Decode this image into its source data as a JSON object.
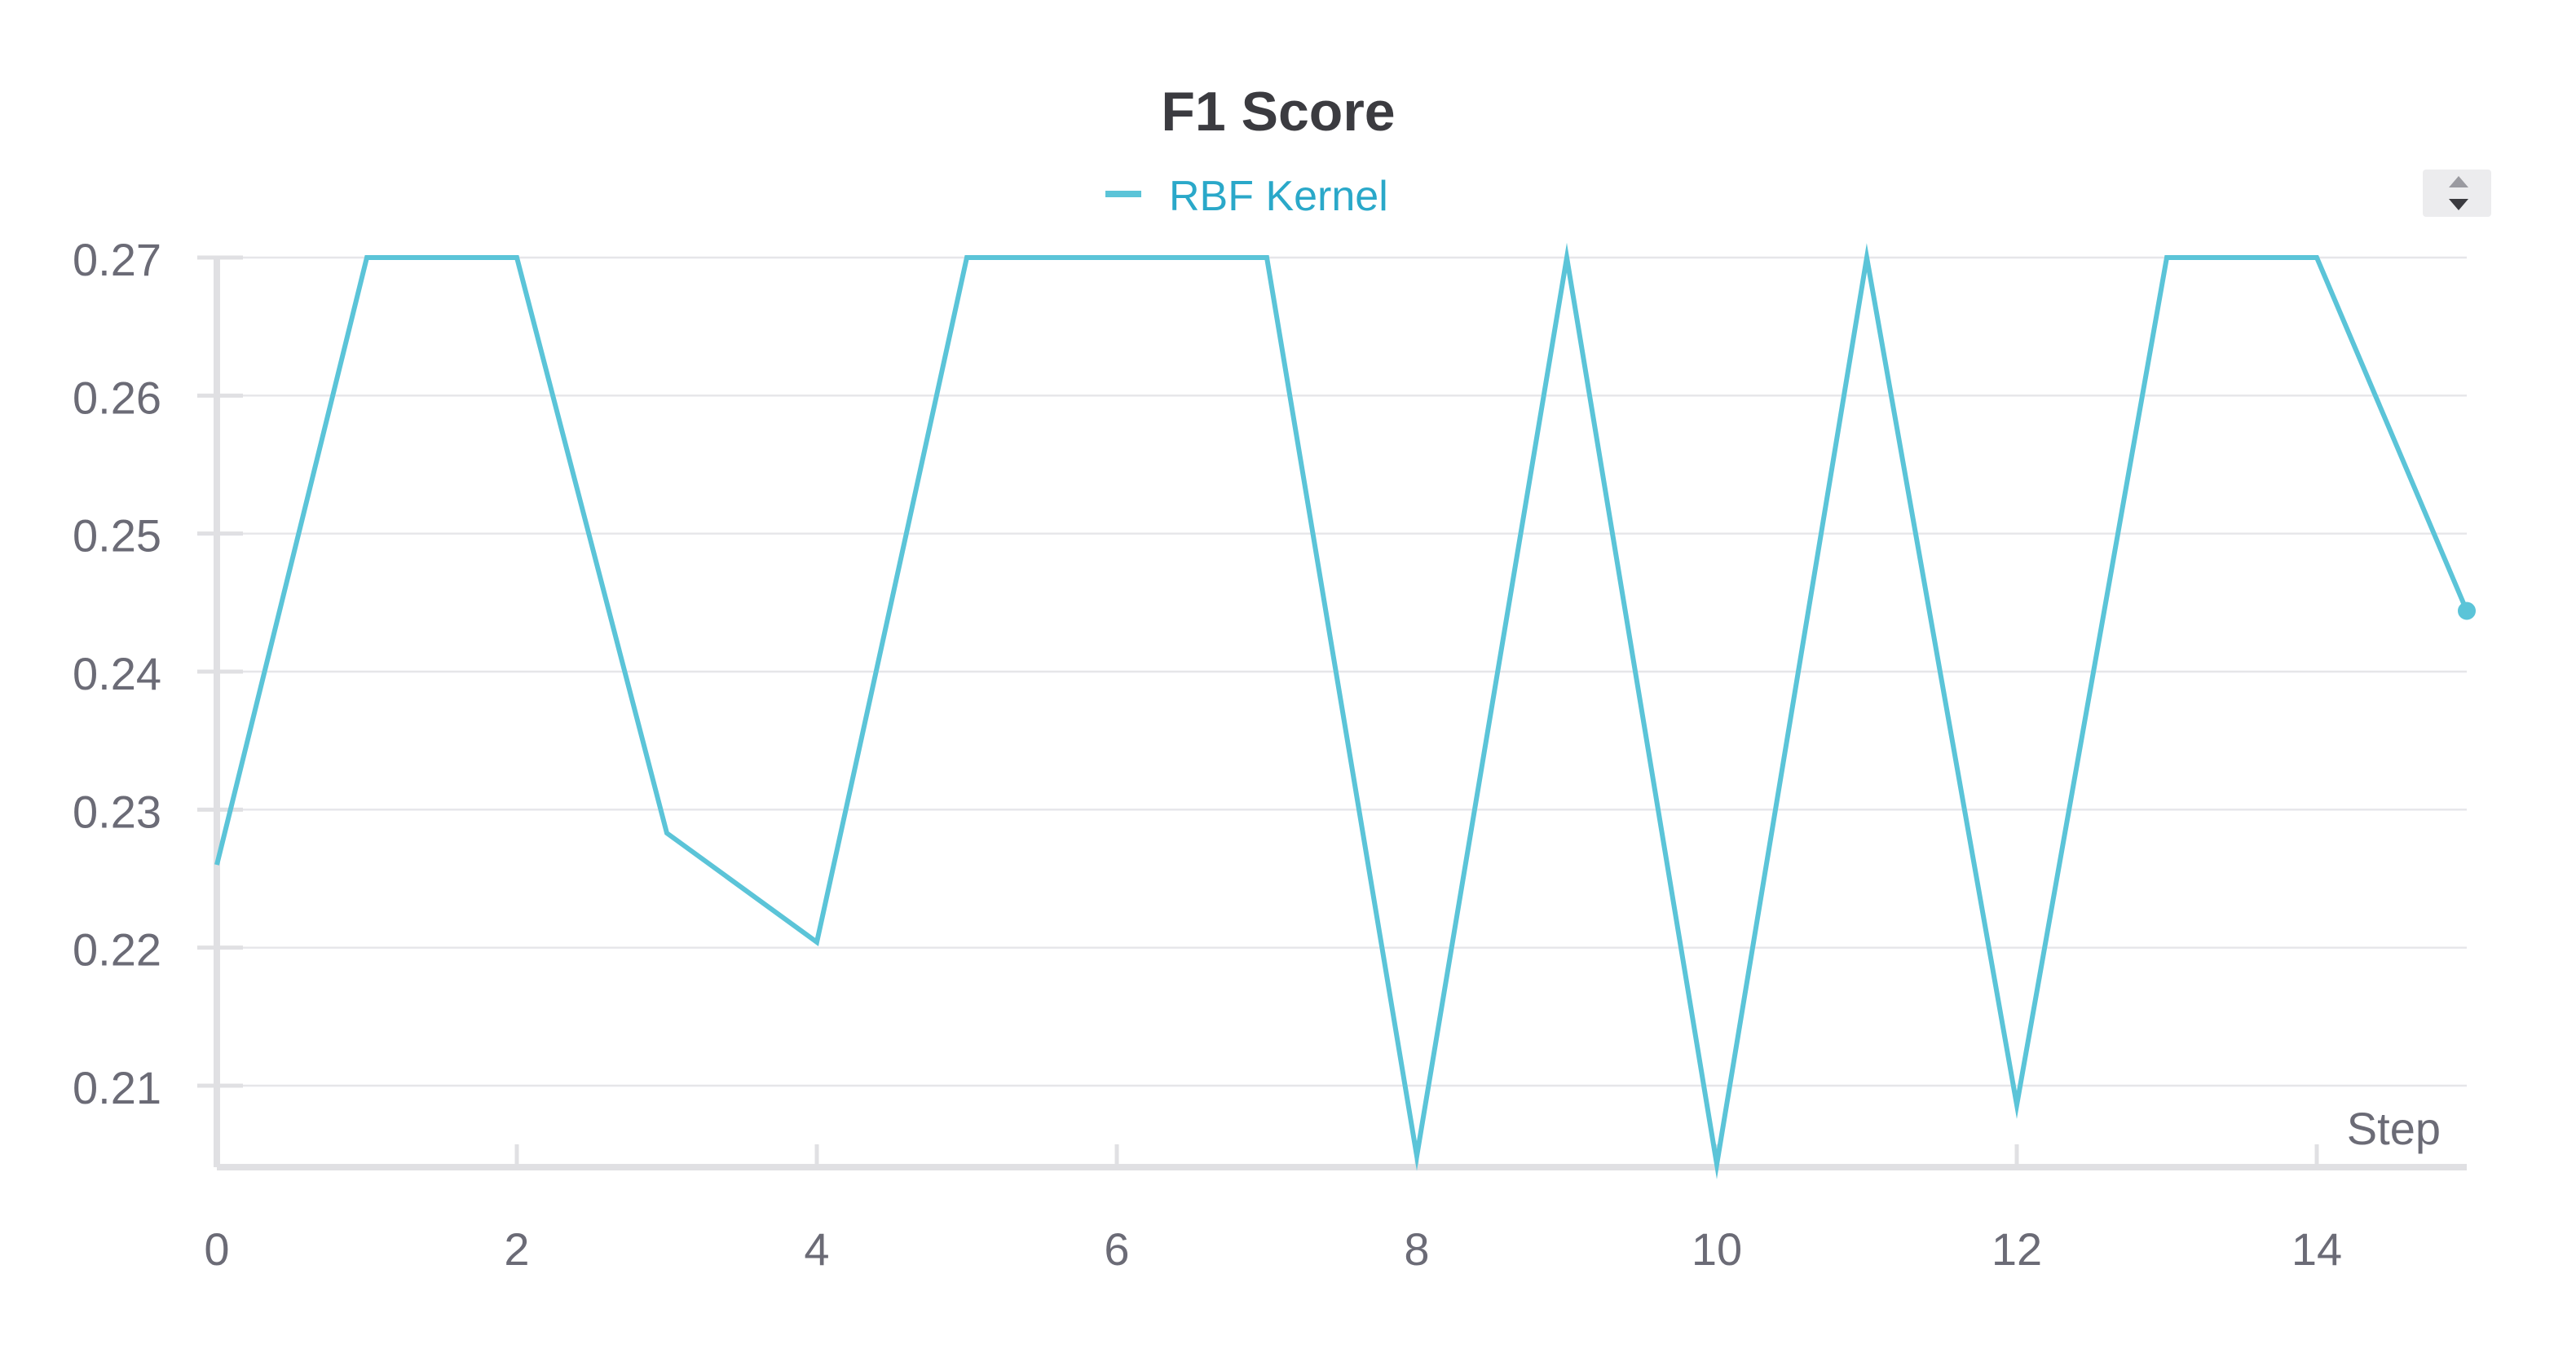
{
  "chart_data": {
    "type": "line",
    "title": "F1 Score",
    "xlabel": "Step",
    "ylabel": "",
    "xlim": [
      0,
      15
    ],
    "ylim": [
      0.2043,
      0.27
    ],
    "x_ticks": [
      0,
      2,
      4,
      6,
      8,
      10,
      12,
      14
    ],
    "y_ticks": [
      0.21,
      0.22,
      0.23,
      0.24,
      0.25,
      0.26,
      0.27
    ],
    "grid": true,
    "legend": "top-center",
    "series": [
      {
        "name": "RBF Kernel",
        "color": "#5bc4d8",
        "x": [
          0,
          1,
          2,
          3,
          4,
          5,
          6,
          7,
          8,
          9,
          10,
          11,
          12,
          13,
          14,
          15
        ],
        "values": [
          0.226,
          0.27,
          0.27,
          0.2283,
          0.2204,
          0.27,
          0.27,
          0.27,
          0.2049,
          0.27,
          0.2043,
          0.27,
          0.2086,
          0.27,
          0.27,
          0.2444
        ]
      }
    ]
  }
}
